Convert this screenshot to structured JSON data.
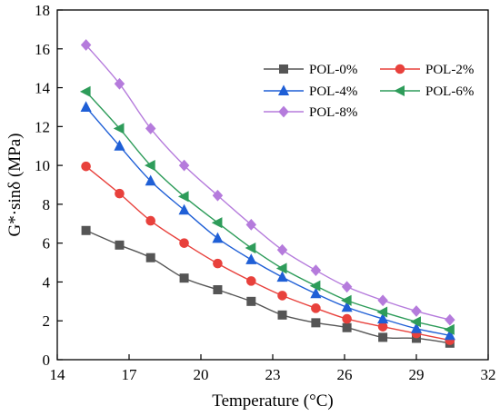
{
  "chart_data": {
    "type": "line",
    "xlabel": "Temperature (°C)",
    "ylabel": "G*·sinδ (MPa)",
    "xlim": [
      14,
      32
    ],
    "ylim": [
      0,
      18
    ],
    "xticks": [
      14,
      17,
      20,
      23,
      26,
      29,
      32
    ],
    "yticks": [
      0,
      2,
      4,
      6,
      8,
      10,
      12,
      14,
      16,
      18
    ],
    "grid": false,
    "legend_position": "top-right",
    "x": [
      15.2,
      16.6,
      17.9,
      19.3,
      20.7,
      22.1,
      23.4,
      24.8,
      26.1,
      27.6,
      29.0,
      30.4
    ],
    "series": [
      {
        "name": "POL-0%",
        "color": "#555555",
        "marker": "square",
        "values": [
          6.65,
          5.9,
          5.25,
          4.2,
          3.6,
          3.0,
          2.3,
          1.9,
          1.65,
          1.15,
          1.1,
          0.85
        ]
      },
      {
        "name": "POL-2%",
        "color": "#e8413c",
        "marker": "circle",
        "values": [
          9.95,
          8.55,
          7.15,
          6.0,
          4.95,
          4.05,
          3.3,
          2.65,
          2.1,
          1.7,
          1.35,
          1.0
        ]
      },
      {
        "name": "POL-4%",
        "color": "#1f5fd6",
        "marker": "triangle",
        "values": [
          13.0,
          11.0,
          9.2,
          7.7,
          6.25,
          5.15,
          4.25,
          3.4,
          2.7,
          2.1,
          1.6,
          1.25
        ]
      },
      {
        "name": "POL-6%",
        "color": "#2e9c5a",
        "marker": "triangle-left",
        "values": [
          13.8,
          11.9,
          10.0,
          8.4,
          7.05,
          5.75,
          4.7,
          3.8,
          3.05,
          2.45,
          1.95,
          1.55
        ]
      },
      {
        "name": "POL-8%",
        "color": "#b57bdc",
        "marker": "diamond",
        "values": [
          16.2,
          14.2,
          11.9,
          10.0,
          8.45,
          6.95,
          5.65,
          4.6,
          3.75,
          3.05,
          2.5,
          2.05
        ]
      }
    ]
  }
}
